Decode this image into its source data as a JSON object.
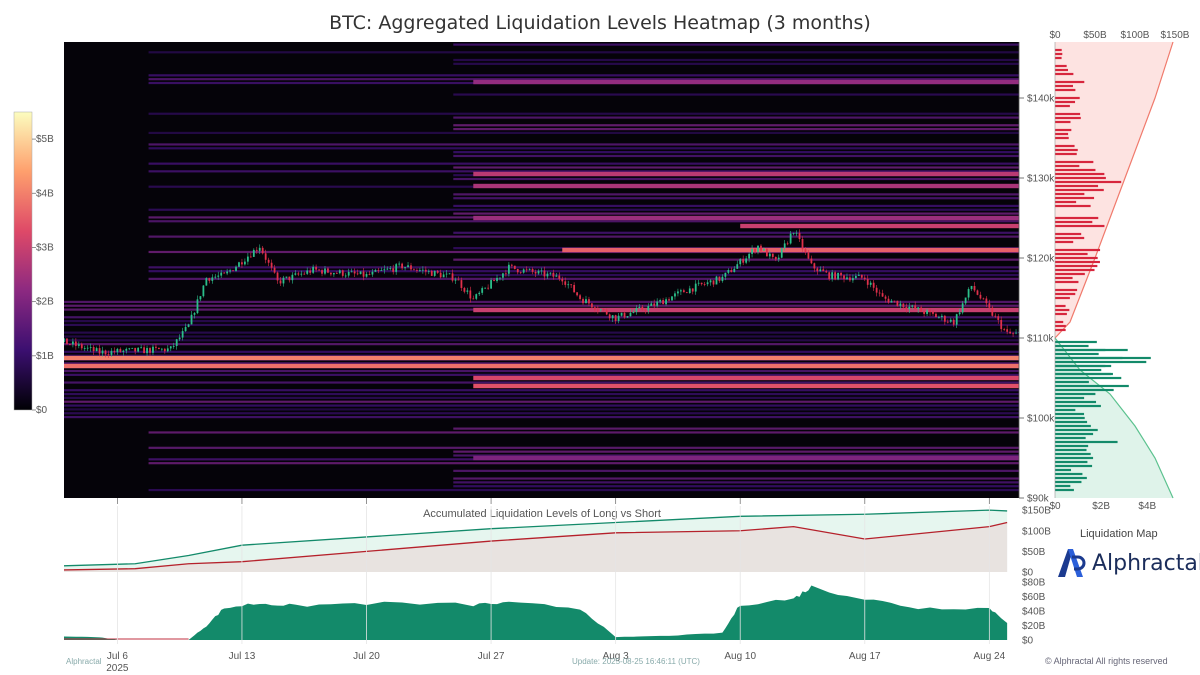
{
  "title": "BTC: Aggregated Liquidation Levels Heatmap (3 months)",
  "colorbar": {
    "ticks": [
      "$5B",
      "$4B",
      "$3B",
      "$2B",
      "$1B",
      "$0"
    ]
  },
  "chart_data": [
    {
      "type": "heatmap",
      "title": "BTC: Aggregated Liquidation Levels Heatmap (3 months)",
      "x_ticks": [
        "Jul 6",
        "Jul 13",
        "Jul 20",
        "Jul 27",
        "Aug 3",
        "Aug 10",
        "Aug 17",
        "Aug 24"
      ],
      "x_year_label": "2025",
      "y_ticks": [
        "$140k",
        "$130k",
        "$120k",
        "$110k",
        "$100k",
        "$90k"
      ],
      "ylim": [
        90000,
        147000
      ],
      "color_range": [
        0,
        5.5
      ],
      "price_path": [
        {
          "date": "2025-07-03",
          "price": 109500
        },
        {
          "date": "2025-07-05",
          "price": 108200
        },
        {
          "date": "2025-07-07",
          "price": 108400
        },
        {
          "date": "2025-07-09",
          "price": 108600
        },
        {
          "date": "2025-07-10",
          "price": 111500
        },
        {
          "date": "2025-07-11",
          "price": 117500
        },
        {
          "date": "2025-07-12",
          "price": 117800
        },
        {
          "date": "2025-07-14",
          "price": 121500
        },
        {
          "date": "2025-07-15",
          "price": 117000
        },
        {
          "date": "2025-07-17",
          "price": 118500
        },
        {
          "date": "2025-07-20",
          "price": 117800
        },
        {
          "date": "2025-07-22",
          "price": 119000
        },
        {
          "date": "2025-07-25",
          "price": 117500
        },
        {
          "date": "2025-07-26",
          "price": 114800
        },
        {
          "date": "2025-07-28",
          "price": 118800
        },
        {
          "date": "2025-07-31",
          "price": 117500
        },
        {
          "date": "2025-08-01",
          "price": 115000
        },
        {
          "date": "2025-08-03",
          "price": 112500
        },
        {
          "date": "2025-08-05",
          "price": 114000
        },
        {
          "date": "2025-08-07",
          "price": 116000
        },
        {
          "date": "2025-08-09",
          "price": 117500
        },
        {
          "date": "2025-08-10",
          "price": 119500
        },
        {
          "date": "2025-08-11",
          "price": 121500
        },
        {
          "date": "2025-08-12",
          "price": 119500
        },
        {
          "date": "2025-08-13",
          "price": 123500
        },
        {
          "date": "2025-08-14",
          "price": 119000
        },
        {
          "date": "2025-08-15",
          "price": 117800
        },
        {
          "date": "2025-08-17",
          "price": 117500
        },
        {
          "date": "2025-08-18",
          "price": 115000
        },
        {
          "date": "2025-08-20",
          "price": 113500
        },
        {
          "date": "2025-08-22",
          "price": 112000
        },
        {
          "date": "2025-08-23",
          "price": 116500
        },
        {
          "date": "2025-08-24",
          "price": 113500
        },
        {
          "date": "2025-08-25",
          "price": 110500
        }
      ],
      "bands": [
        {
          "price": 107500,
          "start": "2025-07-03",
          "value": 4.0
        },
        {
          "price": 106500,
          "start": "2025-07-03",
          "value": 3.8
        },
        {
          "price": 105000,
          "start": "2025-07-26",
          "value": 3.2
        },
        {
          "price": 104000,
          "start": "2025-07-26",
          "value": 3.4
        },
        {
          "price": 113500,
          "start": "2025-07-26",
          "value": 3.0
        },
        {
          "price": 121000,
          "start": "2025-07-31",
          "value": 3.6
        },
        {
          "price": 124000,
          "start": "2025-08-10",
          "value": 3.0
        },
        {
          "price": 130500,
          "start": "2025-07-26",
          "value": 2.8
        },
        {
          "price": 129000,
          "start": "2025-07-26",
          "value": 2.6
        },
        {
          "price": 125000,
          "start": "2025-07-26",
          "value": 2.4
        },
        {
          "price": 142000,
          "start": "2025-07-26",
          "value": 2.3
        },
        {
          "price": 95000,
          "start": "2025-07-26",
          "value": 2.0
        }
      ]
    },
    {
      "type": "bar",
      "title": "",
      "orientation": "horizontal",
      "x_ticks": [
        "$0",
        "$50B",
        "$100B",
        "$150B"
      ],
      "x_ticks_bottom": [
        "$0",
        "$2B",
        "$4B"
      ],
      "series": [
        {
          "name": "",
          "color": "#d7263d",
          "price_range": [
            110000,
            147000
          ]
        },
        {
          "name": "",
          "color": "#138a6a",
          "price_range": [
            90000,
            110000
          ]
        }
      ],
      "short_profile": [
        {
          "price": 146000,
          "value": 0.3
        },
        {
          "price": 144000,
          "value": 0.9
        },
        {
          "price": 142000,
          "value": 1.4
        },
        {
          "price": 140000,
          "value": 1.0
        },
        {
          "price": 138000,
          "value": 1.2
        },
        {
          "price": 136000,
          "value": 0.8
        },
        {
          "price": 134000,
          "value": 1.1
        },
        {
          "price": 132000,
          "value": 1.6
        },
        {
          "price": 130500,
          "value": 2.6
        },
        {
          "price": 129000,
          "value": 2.0
        },
        {
          "price": 127500,
          "value": 1.5
        },
        {
          "price": 125000,
          "value": 2.4
        },
        {
          "price": 123000,
          "value": 1.3
        },
        {
          "price": 121000,
          "value": 1.8
        },
        {
          "price": 119500,
          "value": 1.9
        },
        {
          "price": 118000,
          "value": 1.2
        },
        {
          "price": 116000,
          "value": 0.9
        },
        {
          "price": 114000,
          "value": 0.6
        },
        {
          "price": 112000,
          "value": 0.5
        }
      ],
      "long_profile": [
        {
          "price": 109500,
          "value": 2.0
        },
        {
          "price": 108500,
          "value": 2.8
        },
        {
          "price": 107500,
          "value": 3.7
        },
        {
          "price": 106500,
          "value": 3.2
        },
        {
          "price": 105500,
          "value": 2.6
        },
        {
          "price": 104000,
          "value": 3.0
        },
        {
          "price": 102500,
          "value": 2.2
        },
        {
          "price": 101000,
          "value": 1.6
        },
        {
          "price": 99500,
          "value": 1.9
        },
        {
          "price": 98000,
          "value": 2.4
        },
        {
          "price": 96500,
          "value": 1.4
        },
        {
          "price": 95000,
          "value": 2.1
        },
        {
          "price": 93500,
          "value": 1.2
        },
        {
          "price": 92000,
          "value": 1.0
        }
      ]
    },
    {
      "type": "area",
      "title": "Accumulated Liquidation Levels of Long vs Short",
      "y_ticks": [
        "$150B",
        "$100B",
        "$50B",
        "$0"
      ],
      "ylim": [
        0,
        160
      ],
      "series": [
        {
          "name": "",
          "color": "#138a6a",
          "points": [
            [
              "2025-07-03",
              15
            ],
            [
              "2025-07-07",
              20
            ],
            [
              "2025-07-10",
              40
            ],
            [
              "2025-07-13",
              65
            ],
            [
              "2025-07-20",
              85
            ],
            [
              "2025-07-27",
              105
            ],
            [
              "2025-08-03",
              120
            ],
            [
              "2025-08-10",
              135
            ],
            [
              "2025-08-17",
              140
            ],
            [
              "2025-08-24",
              150
            ],
            [
              "2025-08-25",
              148
            ]
          ]
        },
        {
          "name": "",
          "color": "#b5212b",
          "points": [
            [
              "2025-07-03",
              5
            ],
            [
              "2025-07-07",
              8
            ],
            [
              "2025-07-10",
              20
            ],
            [
              "2025-07-13",
              25
            ],
            [
              "2025-07-20",
              50
            ],
            [
              "2025-07-27",
              75
            ],
            [
              "2025-08-03",
              95
            ],
            [
              "2025-08-10",
              100
            ],
            [
              "2025-08-13",
              110
            ],
            [
              "2025-08-17",
              80
            ],
            [
              "2025-08-24",
              110
            ],
            [
              "2025-08-25",
              120
            ]
          ]
        }
      ]
    },
    {
      "type": "area",
      "title": "",
      "y_ticks": [
        "$80B",
        "$60B",
        "$40B",
        "$20B",
        "$0"
      ],
      "ylim": [
        0,
        80
      ],
      "series": [
        {
          "name": "",
          "color": "#138a6a",
          "points": [
            [
              "2025-07-03",
              5
            ],
            [
              "2025-07-05",
              4
            ],
            [
              "2025-07-06",
              0
            ],
            [
              "2025-07-10",
              0
            ],
            [
              "2025-07-11",
              20
            ],
            [
              "2025-07-12",
              45
            ],
            [
              "2025-07-14",
              52
            ],
            [
              "2025-07-16",
              48
            ],
            [
              "2025-07-20",
              52
            ],
            [
              "2025-07-26",
              50
            ],
            [
              "2025-07-28",
              52
            ],
            [
              "2025-08-01",
              45
            ],
            [
              "2025-08-03",
              4
            ],
            [
              "2025-08-06",
              6
            ],
            [
              "2025-08-09",
              10
            ],
            [
              "2025-08-10",
              50
            ],
            [
              "2025-08-13",
              58
            ],
            [
              "2025-08-14",
              75
            ],
            [
              "2025-08-17",
              58
            ],
            [
              "2025-08-20",
              45
            ],
            [
              "2025-08-24",
              45
            ],
            [
              "2025-08-25",
              25
            ]
          ]
        }
      ]
    }
  ],
  "footer": {
    "left_watermark": "Alphractal",
    "update": "Update: 2025-08-25 16:46:11 (UTC)",
    "liquidation_map": "Liquidation Map",
    "brand": "Alphractal",
    "copyright": "© Alphractal All rights reserved"
  }
}
